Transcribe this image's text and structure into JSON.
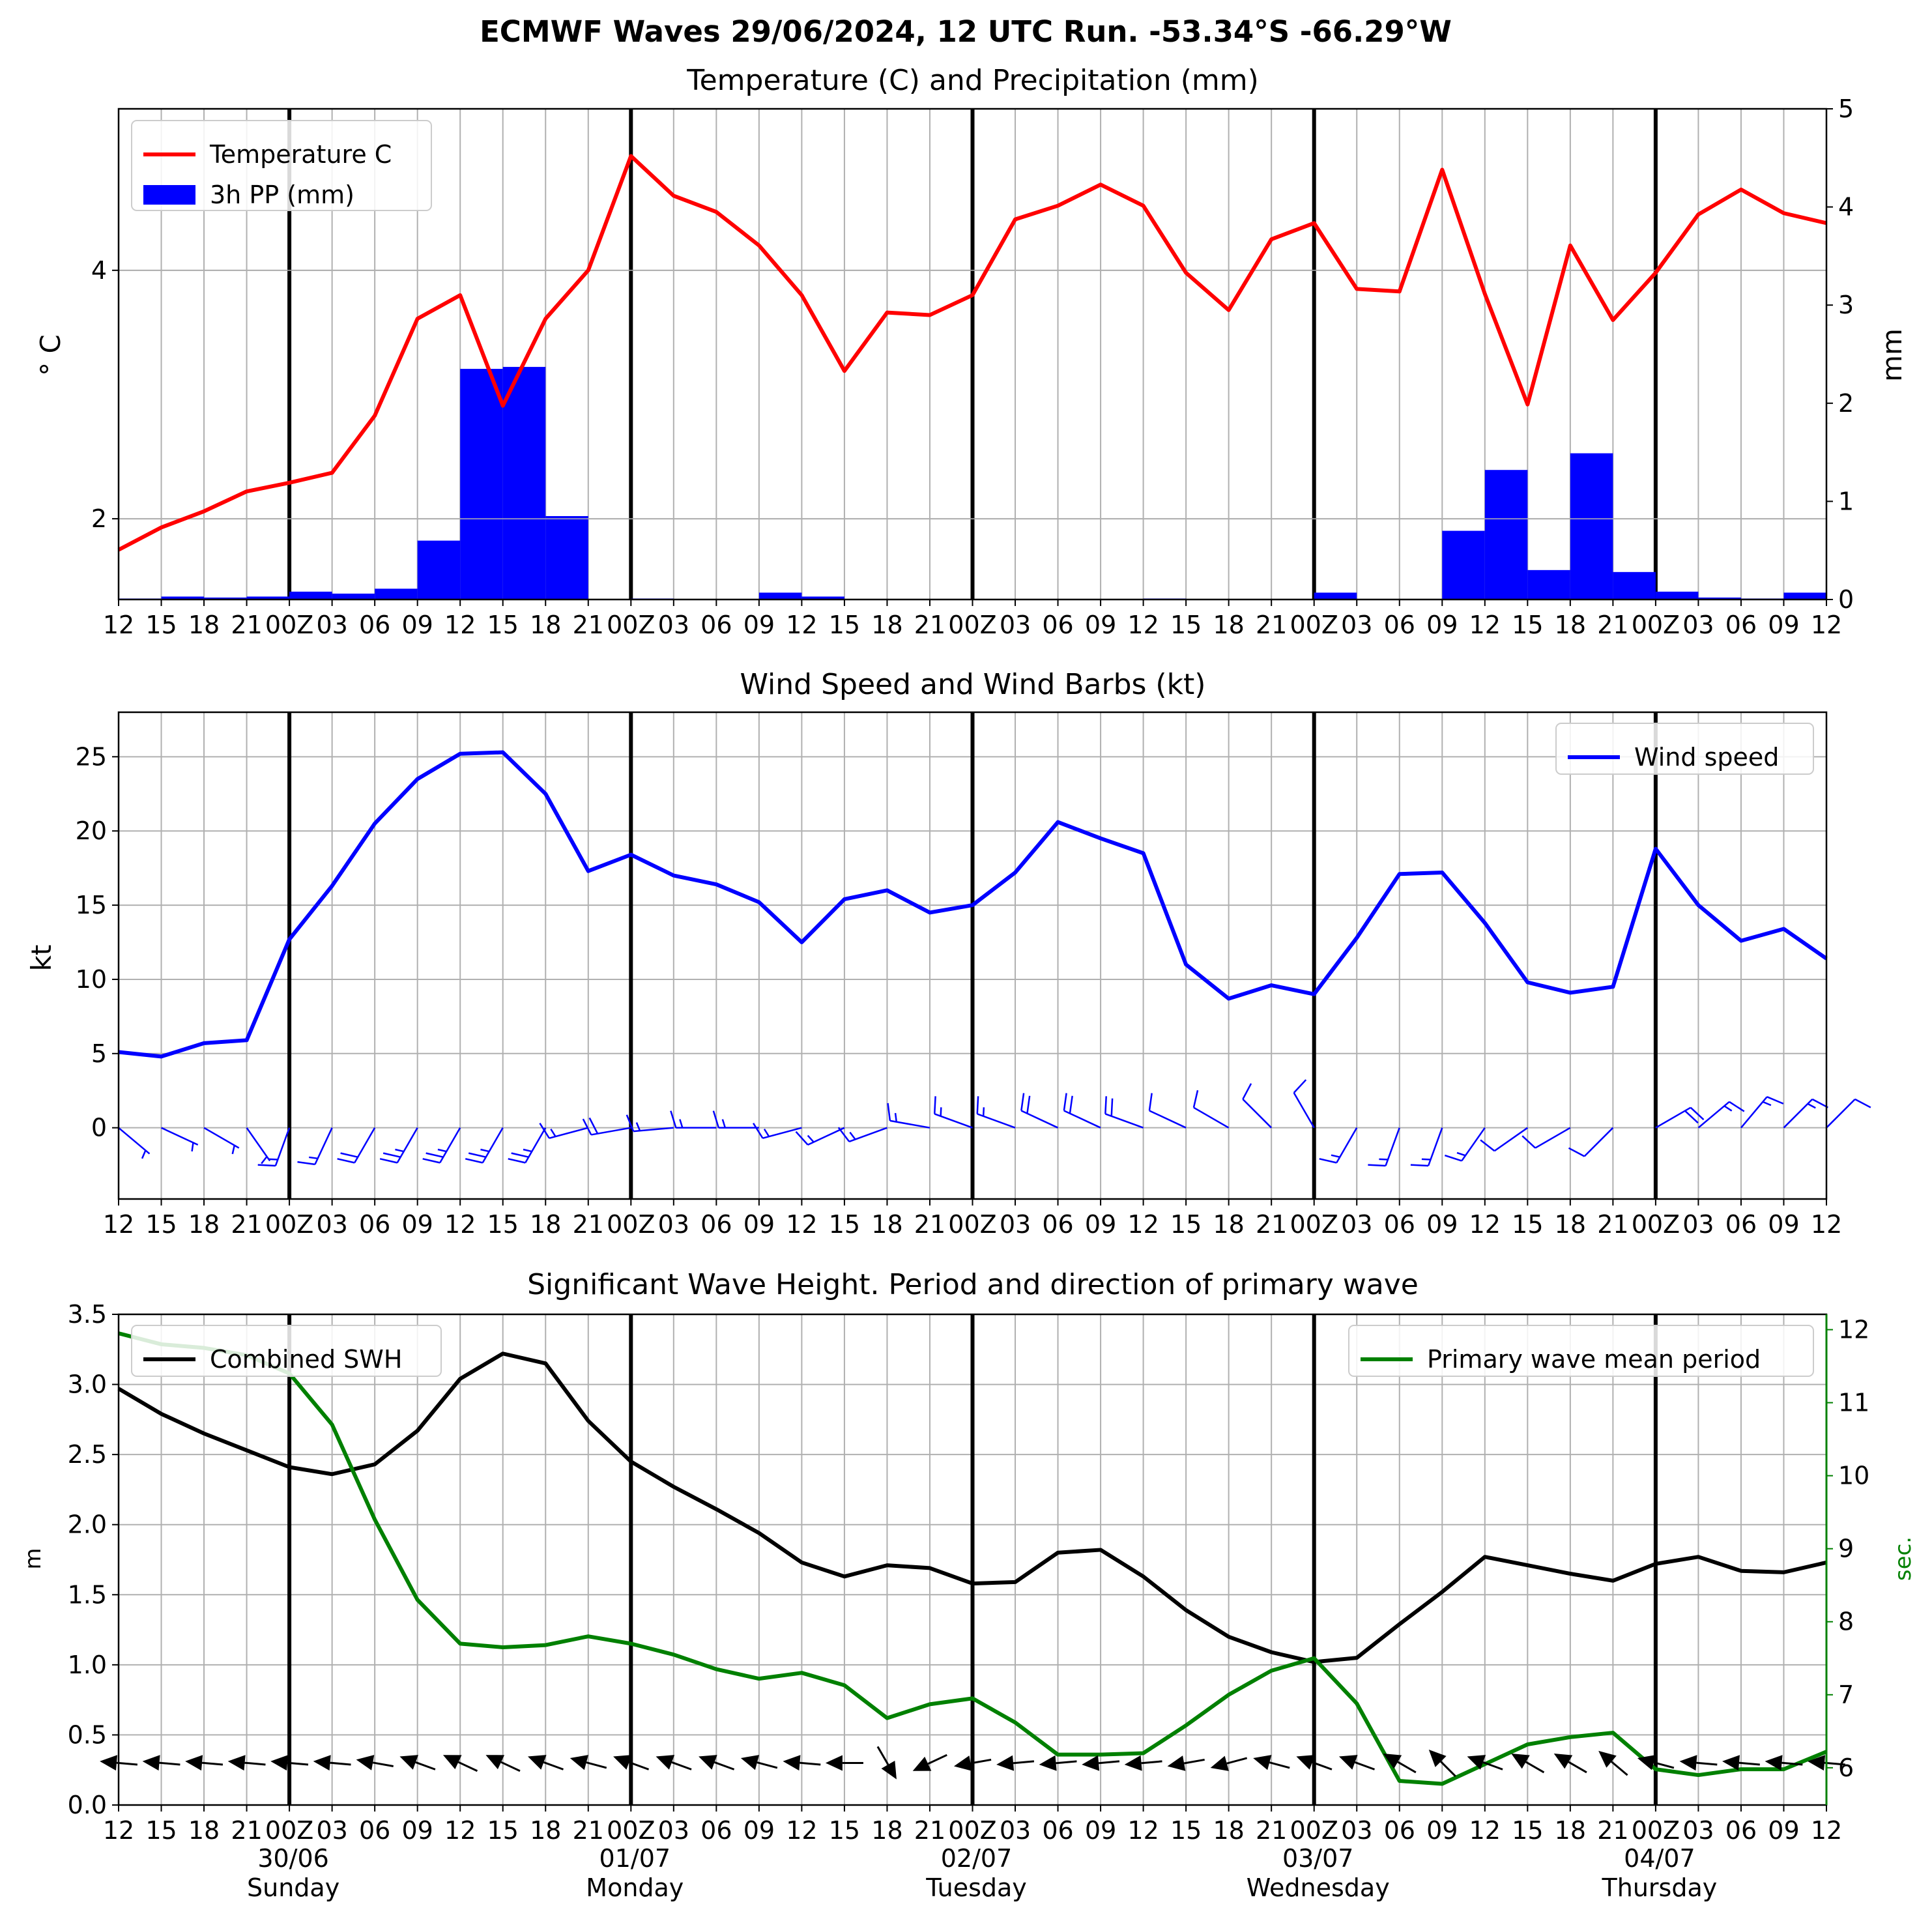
{
  "title": "ECMWF Waves 29/06/2024, 12 UTC Run. -53.34°S -66.29°W",
  "x_tick_labels": [
    "12",
    "15",
    "18",
    "21",
    "00Z",
    "03",
    "06",
    "09",
    "12",
    "15",
    "18",
    "21",
    "00Z",
    "03",
    "06",
    "09",
    "12",
    "15",
    "18",
    "21",
    "00Z",
    "03",
    "06",
    "09",
    "12",
    "15",
    "18",
    "21",
    "00Z",
    "03",
    "06",
    "09",
    "12",
    "15",
    "18",
    "21",
    "00Z",
    "03",
    "06",
    "09",
    "12"
  ],
  "day_labels": [
    {
      "index": 4,
      "date": "30/06",
      "day": "Sunday"
    },
    {
      "index": 12,
      "date": "01/07",
      "day": "Monday"
    },
    {
      "index": 20,
      "date": "02/07",
      "day": "Tuesday"
    },
    {
      "index": 28,
      "date": "03/07",
      "day": "Wednesday"
    },
    {
      "index": 36,
      "date": "04/07",
      "day": "Thursday"
    }
  ],
  "colors": {
    "temperature": "#ff0000",
    "precip": "#0000ff",
    "wind": "#0000ff",
    "swh": "#000000",
    "period": "#008000",
    "grid": "#b0b0b0"
  },
  "chart_data": [
    {
      "type": "line",
      "title": "Temperature (C) and Precipitation (mm)",
      "ylabel": "$^\\circ$C",
      "ylabel_display": "° C",
      "y2label": "mm",
      "ylim": [
        1.35,
        5.3
      ],
      "yticks": [
        "2",
        "4"
      ],
      "y2lim": [
        0,
        5
      ],
      "y2ticks": [
        "0",
        "1",
        "2",
        "3",
        "4",
        "5"
      ],
      "legend": {
        "location": "top-left",
        "entries": [
          "Temperature C",
          "3h PP (mm)"
        ]
      },
      "series": [
        {
          "name": "Temperature C",
          "axis": "left",
          "kind": "line",
          "values": [
            1.75,
            1.93,
            2.06,
            2.22,
            2.29,
            2.37,
            2.83,
            3.61,
            3.8,
            2.91,
            3.61,
            4.0,
            4.92,
            4.6,
            4.47,
            4.2,
            3.8,
            3.19,
            3.66,
            3.64,
            3.8,
            4.41,
            4.52,
            4.69,
            4.52,
            3.98,
            3.68,
            4.25,
            4.38,
            3.85,
            3.83,
            4.81,
            3.81,
            2.92,
            4.2,
            3.6,
            3.98,
            4.45,
            4.65,
            4.46,
            4.38
          ]
        },
        {
          "name": "3h PP (mm)",
          "axis": "right",
          "kind": "bar",
          "values": [
            0.01,
            0.03,
            0.02,
            0.03,
            0.08,
            0.06,
            0.11,
            0.6,
            2.35,
            2.37,
            0.85,
            0,
            0.01,
            0,
            0,
            0.07,
            0.03,
            0,
            0,
            0,
            0,
            0,
            0,
            0,
            0.01,
            0,
            0,
            0,
            0.07,
            0,
            0,
            0.7,
            1.32,
            0.3,
            1.49,
            0.28,
            0.08,
            0.02,
            0.01,
            0.07
          ]
        }
      ]
    },
    {
      "type": "line",
      "title": "Wind Speed and Wind Barbs (kt)",
      "ylabel": "kt",
      "ylim": [
        -4.8,
        28
      ],
      "yticks": [
        "0",
        "5",
        "10",
        "15",
        "20",
        "25"
      ],
      "legend": {
        "location": "top-right",
        "entries": [
          "Wind speed"
        ]
      },
      "series": [
        {
          "name": "Wind speed",
          "values": [
            5.1,
            4.8,
            5.7,
            5.9,
            12.7,
            16.3,
            20.5,
            23.5,
            25.2,
            25.3,
            22.5,
            17.3,
            18.4,
            17.0,
            16.4,
            15.2,
            12.5,
            15.4,
            16.0,
            14.5,
            15.0,
            17.2,
            20.6,
            19.5,
            18.5,
            11.0,
            8.7,
            9.6,
            9.0,
            12.8,
            17.1,
            17.2,
            13.8,
            9.8,
            9.1,
            9.5,
            18.8,
            15.0,
            12.6,
            13.4,
            11.4
          ]
        }
      ],
      "barbs_direction_from_deg": [
        130,
        115,
        120,
        145,
        200,
        205,
        210,
        210,
        210,
        210,
        210,
        255,
        260,
        265,
        270,
        270,
        255,
        245,
        250,
        280,
        290,
        290,
        295,
        295,
        290,
        295,
        300,
        315,
        330,
        210,
        200,
        200,
        215,
        235,
        240,
        225,
        60,
        50,
        40,
        45,
        45
      ]
    },
    {
      "type": "line",
      "title": "Significant Wave Height. Period and direction of primary wave",
      "ylabel": "m",
      "y2label": "sec.",
      "ylim": [
        0,
        3.5
      ],
      "yticks": [
        "0.0",
        "0.5",
        "1.0",
        "1.5",
        "2.0",
        "2.5",
        "3.0",
        "3.5"
      ],
      "y2lim": [
        5.49,
        12.21
      ],
      "y2ticks": [
        "6",
        "7",
        "8",
        "9",
        "10",
        "11",
        "12"
      ],
      "legend": [
        {
          "location": "top-left",
          "entries": [
            "Combined SWH"
          ]
        },
        {
          "location": "top-right",
          "entries": [
            "Primary wave mean period"
          ]
        }
      ],
      "series": [
        {
          "name": "Combined SWH",
          "axis": "left",
          "values": [
            2.97,
            2.79,
            2.65,
            2.53,
            2.41,
            2.36,
            2.43,
            2.67,
            3.04,
            3.22,
            3.15,
            2.74,
            2.45,
            2.27,
            2.11,
            1.94,
            1.73,
            1.63,
            1.71,
            1.69,
            1.58,
            1.59,
            1.8,
            1.82,
            1.63,
            1.39,
            1.2,
            1.09,
            1.02,
            1.05,
            1.29,
            1.52,
            1.77,
            1.71,
            1.65,
            1.6,
            1.72,
            1.77,
            1.67,
            1.66,
            1.73
          ]
        },
        {
          "name": "Primary wave mean period",
          "axis": "right",
          "values": [
            11.95,
            11.8,
            11.75,
            11.65,
            11.4,
            10.7,
            9.4,
            8.3,
            7.7,
            7.65,
            7.68,
            7.8,
            7.7,
            7.55,
            7.35,
            7.22,
            7.3,
            7.13,
            6.68,
            6.87,
            6.95,
            6.62,
            6.18,
            6.18,
            6.2,
            6.58,
            7.0,
            7.33,
            7.5,
            6.88,
            5.82,
            5.78,
            6.05,
            6.32,
            6.42,
            6.48,
            5.98,
            5.9,
            5.98,
            5.98,
            6.22
          ]
        }
      ],
      "wave_direction_from_deg": [
        95,
        95,
        95,
        95,
        95,
        95,
        100,
        110,
        115,
        115,
        110,
        105,
        110,
        110,
        110,
        105,
        95,
        90,
        330,
        65,
        80,
        85,
        85,
        85,
        85,
        80,
        75,
        105,
        110,
        110,
        120,
        135,
        110,
        120,
        120,
        130,
        105,
        95,
        95,
        95,
        95
      ]
    }
  ]
}
